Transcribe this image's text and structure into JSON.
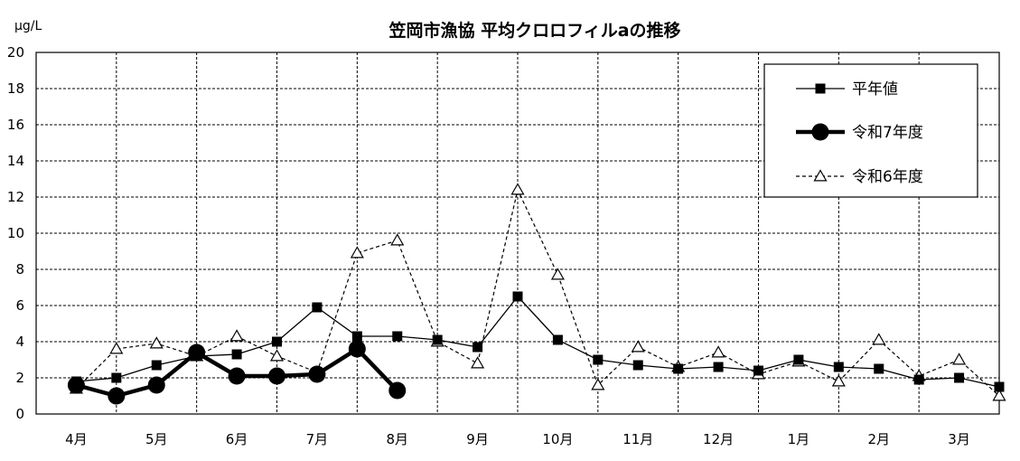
{
  "chart_data": {
    "type": "line",
    "title": "笠岡市漁協 平均クロロフィルaの推移",
    "unit_label": "μg/L",
    "ylim": [
      0,
      20
    ],
    "y_ticks": [
      "0",
      "2",
      "4",
      "6",
      "8",
      "10",
      "12",
      "14",
      "16",
      "18",
      "20"
    ],
    "categories": [
      "4月",
      "5月",
      "6月",
      "7月",
      "8月",
      "9月",
      "10月",
      "11月",
      "12月",
      "1月",
      "2月",
      "3月"
    ],
    "grid": true,
    "legend_position": "top-right",
    "series": [
      {
        "name": "平年値",
        "style": "thin-solid",
        "marker": "square",
        "x": [
          0,
          0.5,
          1,
          1.5,
          2,
          2.5,
          3,
          3.5,
          4,
          4.5,
          5,
          5.5,
          6,
          6.5,
          7,
          7.5,
          8,
          8.5,
          9,
          9.5,
          10,
          10.5,
          11,
          11.5
        ],
        "y": [
          1.8,
          2.0,
          2.7,
          3.2,
          3.3,
          4.0,
          5.9,
          4.3,
          4.3,
          4.1,
          3.7,
          6.5,
          4.1,
          3.0,
          2.7,
          2.5,
          2.6,
          2.4,
          3.0,
          2.6,
          2.5,
          1.9,
          2.0,
          1.5
        ]
      },
      {
        "name": "令和7年度",
        "style": "bold-solid",
        "marker": "circle",
        "x": [
          0,
          0.5,
          1,
          1.5,
          2,
          2.5,
          3,
          3.5,
          4
        ],
        "y": [
          1.6,
          1.0,
          1.6,
          3.4,
          2.1,
          2.1,
          2.2,
          3.6,
          1.3
        ]
      },
      {
        "name": "令和6年度",
        "style": "dashed",
        "marker": "triangle",
        "x": [
          0,
          0.5,
          1,
          1.5,
          2,
          2.5,
          3,
          3.5,
          4,
          4.5,
          5,
          5.5,
          6,
          6.5,
          7,
          7.5,
          8,
          8.5,
          9,
          9.5,
          10,
          10.5,
          11,
          11.5
        ],
        "y": [
          1.4,
          3.6,
          3.9,
          3.2,
          4.3,
          3.2,
          2.3,
          8.9,
          9.6,
          4.0,
          2.8,
          12.4,
          7.7,
          1.6,
          3.7,
          2.6,
          3.4,
          2.2,
          2.9,
          1.8,
          4.1,
          2.1,
          3.0,
          1.0
        ]
      }
    ]
  }
}
